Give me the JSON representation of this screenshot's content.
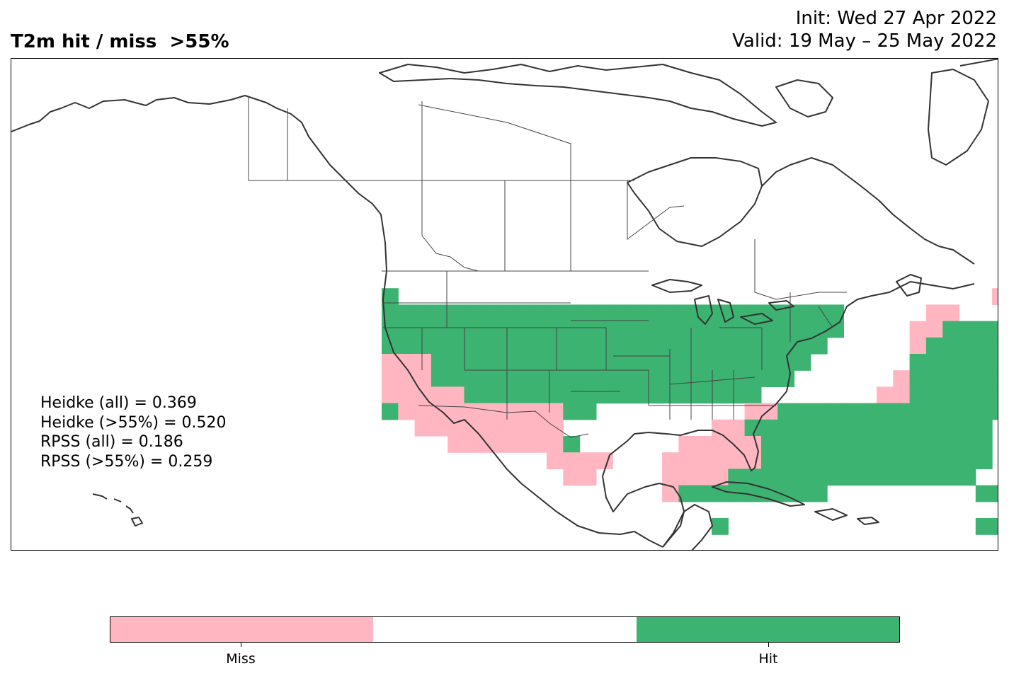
{
  "title": "T2m hit / miss  >55%",
  "init_line": "Init: Wed 27 Apr 2022",
  "valid_line": "Valid: 19 May – 25 May 2022",
  "stats": [
    "Heidke (all) = 0.369",
    "Heidke (>55%) = 0.520",
    "RPSS (all) = 0.186",
    "RPSS (>55%) = 0.259"
  ],
  "colorbar": {
    "segments": [
      {
        "label": "Miss",
        "color": "#FFB6C1"
      },
      {
        "label": "",
        "color": "#FFFFFF"
      },
      {
        "label": "Hit",
        "color": "#3CB371"
      }
    ]
  },
  "colors": {
    "hit": "#3CB371",
    "miss": "#FFB6C1",
    "coastline": "#333333",
    "border": "#444444"
  }
}
